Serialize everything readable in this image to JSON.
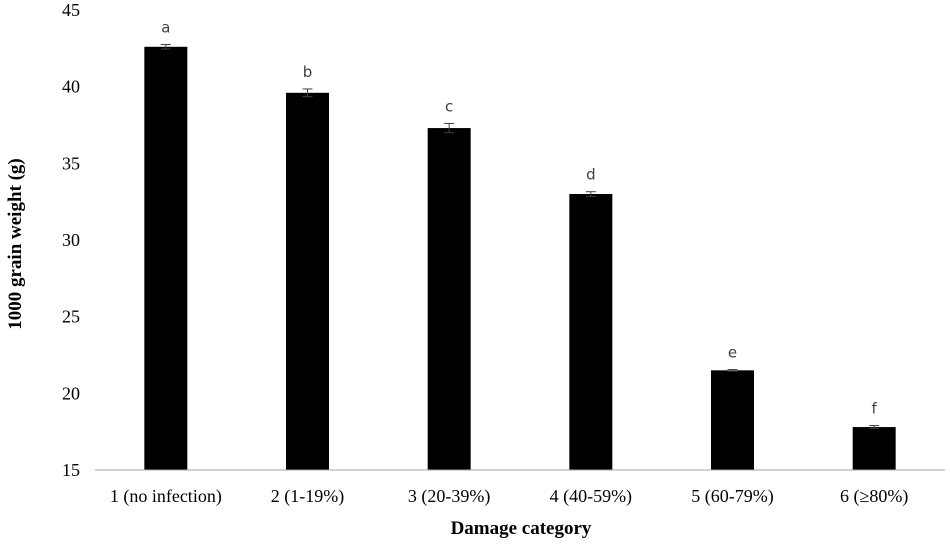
{
  "chart_data": {
    "type": "bar",
    "xlabel": "Damage  category",
    "ylabel": "1000 grain weight (g)",
    "ylim": [
      15,
      45
    ],
    "yticks": [
      15,
      20,
      25,
      30,
      35,
      40,
      45
    ],
    "grid": false,
    "legend": "none",
    "bar_color": "#000000",
    "categories": [
      "1 (no infection)",
      "2 (1-19%)",
      "3 (20-39%)",
      "4 (40-59%)",
      "5 (60-79%)",
      "6 (≥80%)"
    ],
    "values": [
      42.6,
      39.6,
      37.3,
      33.0,
      21.5,
      17.8
    ],
    "errors": [
      0.15,
      0.25,
      0.3,
      0.15,
      0.05,
      0.1
    ],
    "significance_letters": [
      "a",
      "b",
      "c",
      "d",
      "e",
      "f"
    ]
  }
}
